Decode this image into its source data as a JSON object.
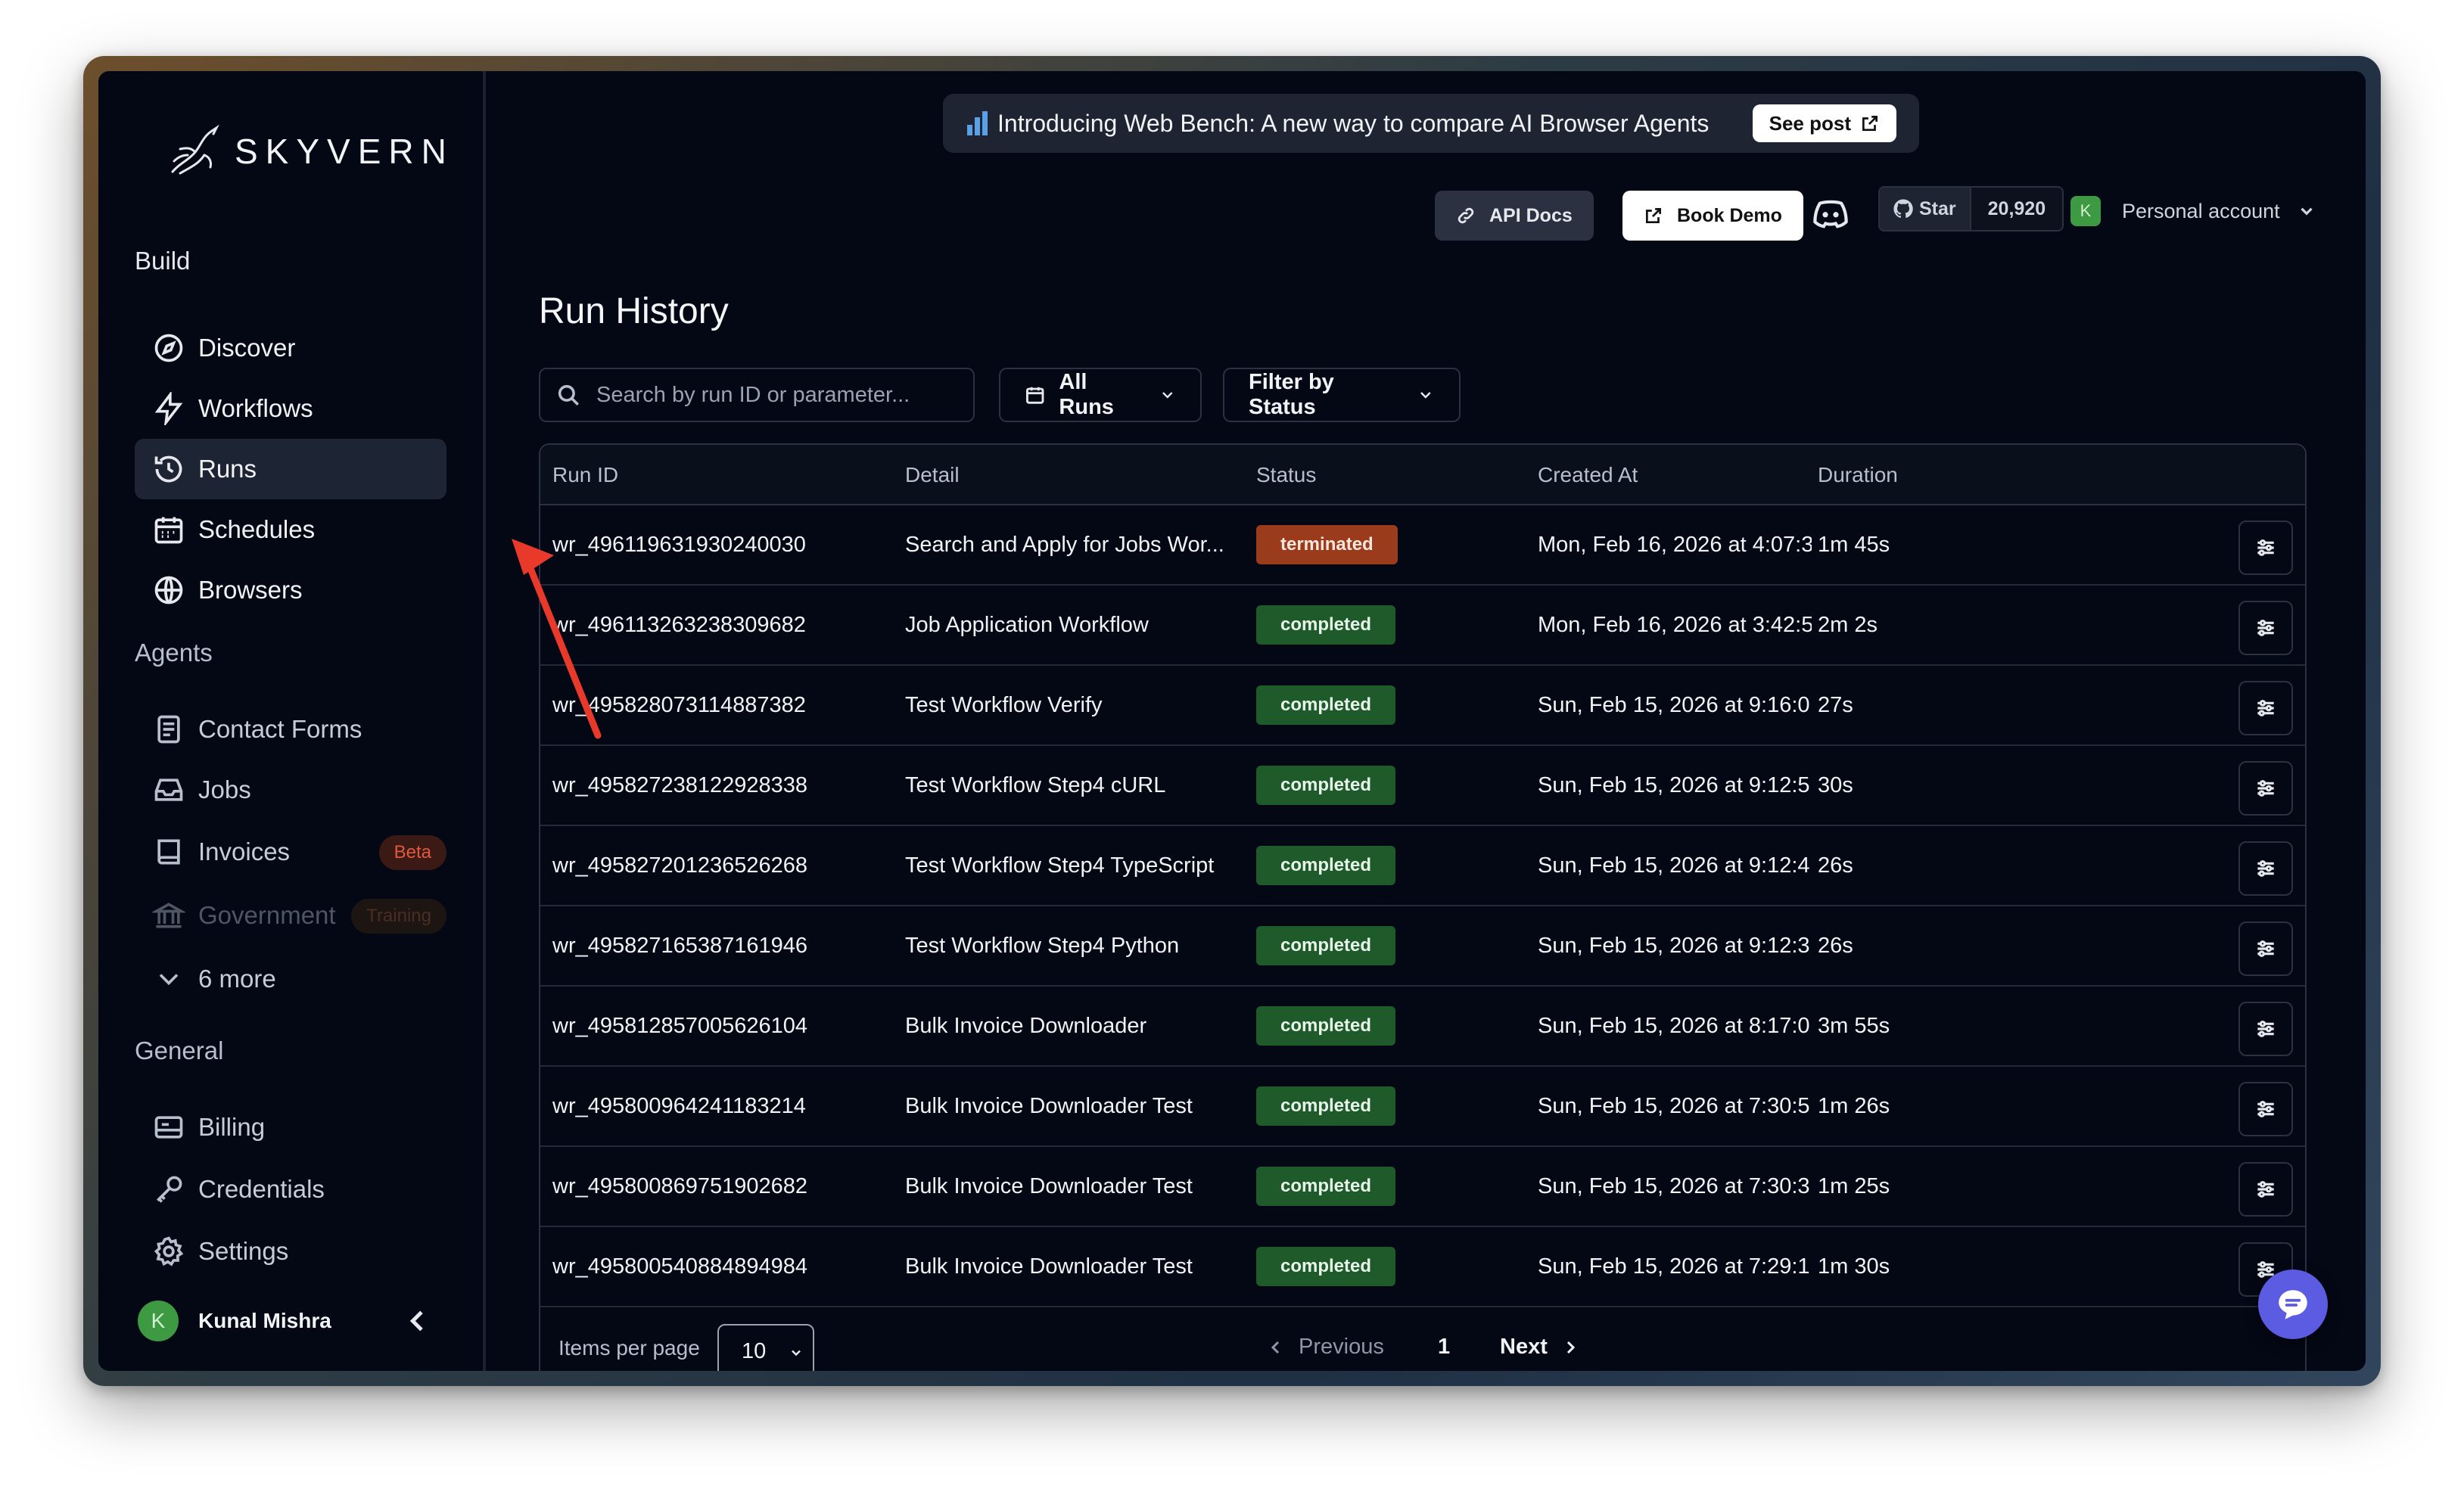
{
  "app": {
    "brand": "SKYVERN"
  },
  "sidebar": {
    "build_title": "Build",
    "build_items": [
      {
        "label": "Discover",
        "icon": "compass-icon"
      },
      {
        "label": "Workflows",
        "icon": "lightning-icon"
      },
      {
        "label": "Runs",
        "icon": "history-icon",
        "active": true
      },
      {
        "label": "Schedules",
        "icon": "calendar-icon"
      },
      {
        "label": "Browsers",
        "icon": "globe-icon"
      }
    ],
    "agents_title": "Agents",
    "agent_items": [
      {
        "label": "Contact Forms",
        "icon": "form-icon"
      },
      {
        "label": "Jobs",
        "icon": "inbox-icon"
      },
      {
        "label": "Invoices",
        "icon": "book-icon",
        "badge": "Beta"
      },
      {
        "label": "Government",
        "icon": "landmark-icon",
        "badge": "Training",
        "disabled": true
      },
      {
        "label": "6 more",
        "icon": "chevron-down-icon"
      }
    ],
    "general_title": "General",
    "general_items": [
      {
        "label": "Billing",
        "icon": "billing-icon"
      },
      {
        "label": "Credentials",
        "icon": "key-icon"
      },
      {
        "label": "Settings",
        "icon": "gear-icon"
      }
    ],
    "user": {
      "initial": "K",
      "name": "Kunal Mishra"
    }
  },
  "banner": {
    "text": "Introducing Web Bench: A new way to compare AI Browser Agents",
    "button": "See post"
  },
  "topbar": {
    "api_docs": "API Docs",
    "book_demo": "Book Demo",
    "star_label": "Star",
    "star_count": "20,920",
    "account_initial": "K",
    "account_label": "Personal account"
  },
  "page": {
    "title": "Run History",
    "search_placeholder": "Search by run ID or parameter...",
    "all_runs": "All Runs",
    "filter_status": "Filter by Status"
  },
  "table": {
    "columns": [
      "Run ID",
      "Detail",
      "Status",
      "Created At",
      "Duration"
    ],
    "rows": [
      {
        "id": "wr_496119631930240030",
        "detail": "Search and Apply for Jobs Wor...",
        "status": "terminated",
        "created": "Mon, Feb 16, 2026 at 4:07:3",
        "duration": "1m 45s"
      },
      {
        "id": "wr_496113263238309682",
        "detail": "Job Application Workflow",
        "status": "completed",
        "created": "Mon, Feb 16, 2026 at 3:42:5",
        "duration": "2m 2s"
      },
      {
        "id": "wr_495828073114887382",
        "detail": "Test Workflow Verify",
        "status": "completed",
        "created": "Sun, Feb 15, 2026 at 9:16:0",
        "duration": "27s"
      },
      {
        "id": "wr_495827238122928338",
        "detail": "Test Workflow Step4 cURL",
        "status": "completed",
        "created": "Sun, Feb 15, 2026 at 9:12:5",
        "duration": "30s"
      },
      {
        "id": "wr_495827201236526268",
        "detail": "Test Workflow Step4 TypeScript",
        "status": "completed",
        "created": "Sun, Feb 15, 2026 at 9:12:4",
        "duration": "26s"
      },
      {
        "id": "wr_495827165387161946",
        "detail": "Test Workflow Step4 Python",
        "status": "completed",
        "created": "Sun, Feb 15, 2026 at 9:12:3",
        "duration": "26s"
      },
      {
        "id": "wr_495812857005626104",
        "detail": "Bulk Invoice Downloader",
        "status": "completed",
        "created": "Sun, Feb 15, 2026 at 8:17:0",
        "duration": "3m 55s"
      },
      {
        "id": "wr_495800964241183214",
        "detail": "Bulk Invoice Downloader Test",
        "status": "completed",
        "created": "Sun, Feb 15, 2026 at 7:30:5",
        "duration": "1m 26s"
      },
      {
        "id": "wr_495800869751902682",
        "detail": "Bulk Invoice Downloader Test",
        "status": "completed",
        "created": "Sun, Feb 15, 2026 at 7:30:3",
        "duration": "1m 25s"
      },
      {
        "id": "wr_495800540884894984",
        "detail": "Bulk Invoice Downloader Test",
        "status": "completed",
        "created": "Sun, Feb 15, 2026 at 7:29:1",
        "duration": "1m 30s"
      }
    ]
  },
  "pagination": {
    "items_per_page_label": "Items per page",
    "items_per_page": "10",
    "previous": "Previous",
    "current_page": "1",
    "next": "Next"
  },
  "colors": {
    "background": "#040814",
    "completed": "#1e5a2a",
    "terminated": "#9a3b1c",
    "beta": "#e0583e",
    "annotation_arrow": "#e8392a",
    "chat_fab": "#5b5ce2"
  }
}
